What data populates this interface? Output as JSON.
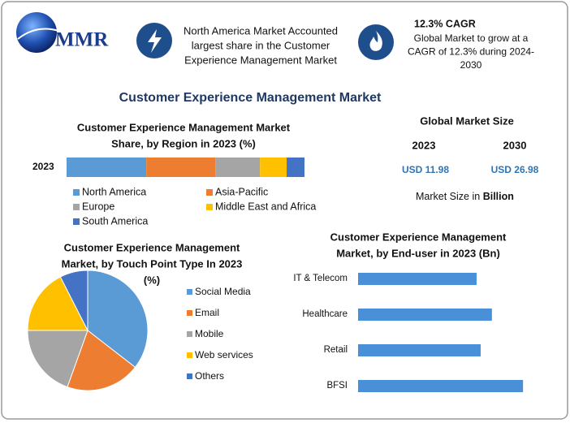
{
  "header": {
    "logo": "MMR",
    "highlight": [
      "North America Market Accounted",
      "largest share in the Customer",
      "Experience Management Market"
    ],
    "cagr_title": "12.3% CAGR",
    "cagr_text": [
      "Global Market to grow at a",
      "CAGR of 12.3% during 2024-",
      "2030"
    ]
  },
  "title": "Customer Experience Management Market",
  "market_size": {
    "title": "Global Market Size",
    "years": [
      "2023",
      "2030"
    ],
    "values": [
      "USD 11.98",
      "USD 26.98"
    ],
    "note": "Market Size in",
    "note_unit": "Billion"
  },
  "chart_data": [
    {
      "type": "stacked-bar",
      "title": [
        "Customer Experience Management Market",
        "Share, by Region in 2023 (%)"
      ],
      "categories": [
        "2023"
      ],
      "series": [
        {
          "name": "North America",
          "color": "#5b9bd5",
          "values": [
            33.5
          ]
        },
        {
          "name": "Asia-Pacific",
          "color": "#ed7d31",
          "values": [
            29
          ]
        },
        {
          "name": "Europe",
          "color": "#a5a5a5",
          "values": [
            18.8
          ]
        },
        {
          "name": "Middle East and Africa",
          "color": "#ffc000",
          "values": [
            11.2
          ]
        },
        {
          "name": "South America",
          "color": "#4472c4",
          "values": [
            7.5
          ]
        }
      ]
    },
    {
      "type": "pie",
      "title": [
        "Customer Experience Management",
        "Market, by Touch Point Type In 2023",
        "(%)"
      ],
      "categories": [
        "Social Media",
        "Email",
        "Mobile",
        "Web services",
        "Others"
      ],
      "values": [
        35.5,
        20,
        19.5,
        17.5,
        7.5
      ],
      "colors": [
        "#5b9bd5",
        "#ed7d31",
        "#a5a5a5",
        "#ffc000",
        "#4472c4"
      ]
    },
    {
      "type": "hbar",
      "title": [
        "Customer Experience Management",
        "Market, by End-user in 2023 (Bn)"
      ],
      "categories": [
        "IT & Telecom",
        "Healthcare",
        "Retail",
        "BFSI"
      ],
      "values": [
        2.63,
        2.97,
        2.72,
        3.66
      ],
      "color": "#4a90d9"
    }
  ]
}
